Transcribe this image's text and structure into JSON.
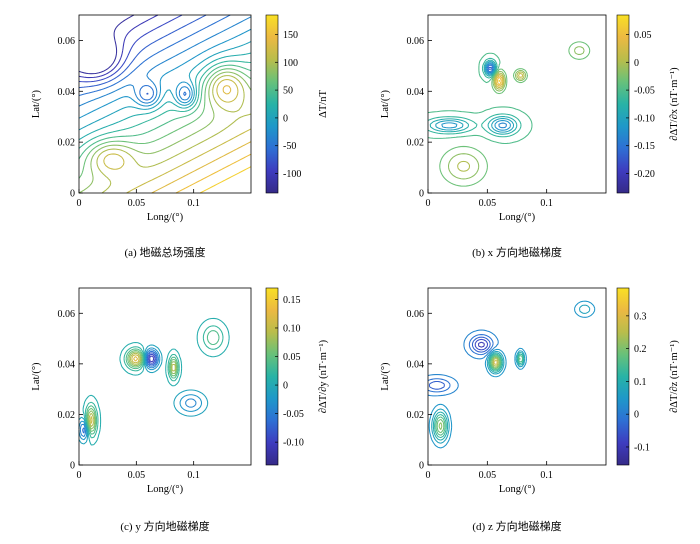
{
  "figure": {
    "colors": {
      "colormap": [
        "#352a87",
        "#3e3cbf",
        "#2e6fd4",
        "#1f98c9",
        "#28b3a6",
        "#68c17a",
        "#b9bd4b",
        "#ecb942",
        "#f9e024"
      ]
    }
  },
  "chart_data": [
    {
      "type": "contour",
      "xlabel": "Long/(°)",
      "ylabel": "Lat/(°)",
      "xlim": [
        0,
        0.15
      ],
      "ylim": [
        0,
        0.07
      ],
      "xticks": [
        "0",
        "0.05",
        "0.1"
      ],
      "yticks": [
        "0",
        "0.02",
        "0.04",
        "0.06"
      ],
      "caption": "(a) 地磁总场强度",
      "colorbar": {
        "label": "ΔT/nT",
        "range": [
          -135,
          185
        ],
        "ticks": [
          "150",
          "100",
          "50",
          "0",
          "-50",
          "-100"
        ]
      }
    },
    {
      "type": "contour",
      "xlabel": "Long/(°)",
      "ylabel": "Lat/(°)",
      "xlim": [
        0,
        0.15
      ],
      "ylim": [
        0,
        0.07
      ],
      "xticks": [
        "0",
        "0.05",
        "0.1"
      ],
      "yticks": [
        "0",
        "0.02",
        "0.04",
        "0.06"
      ],
      "caption": "(b) x 方向地磁梯度",
      "colorbar": {
        "label": "∂ΔT/∂x (nT·m⁻¹)",
        "range": [
          -0.235,
          0.085
        ],
        "ticks": [
          "0.05",
          "0",
          "-0.05",
          "-0.10",
          "-0.15",
          "-0.20"
        ]
      }
    },
    {
      "type": "contour",
      "xlabel": "Long/(°)",
      "ylabel": "Lat/(°)",
      "xlim": [
        0,
        0.15
      ],
      "ylim": [
        0,
        0.07
      ],
      "xticks": [
        "0",
        "0.05",
        "0.1"
      ],
      "yticks": [
        "0",
        "0.02",
        "0.04",
        "0.06"
      ],
      "caption": "(c) y 方向地磁梯度",
      "colorbar": {
        "label": "∂ΔT/∂y (nT·m⁻¹)",
        "range": [
          -0.14,
          0.17
        ],
        "ticks": [
          "0.15",
          "0.10",
          "0.05",
          "0",
          "-0.05",
          "-0.10"
        ]
      }
    },
    {
      "type": "contour",
      "xlabel": "Long/(°)",
      "ylabel": "Lat/(°)",
      "xlim": [
        0,
        0.15
      ],
      "ylim": [
        0,
        0.07
      ],
      "xticks": [
        "0",
        "0.05",
        "0.1"
      ],
      "yticks": [
        "0",
        "0.02",
        "0.04",
        "0.06"
      ],
      "caption": "(d) z 方向地磁梯度",
      "colorbar": {
        "label": "∂ΔT/∂z (nT·m⁻¹)",
        "range": [
          -0.155,
          0.385
        ],
        "ticks": [
          "0.3",
          "0.2",
          "0.1",
          "0",
          "-0.1"
        ]
      }
    }
  ]
}
